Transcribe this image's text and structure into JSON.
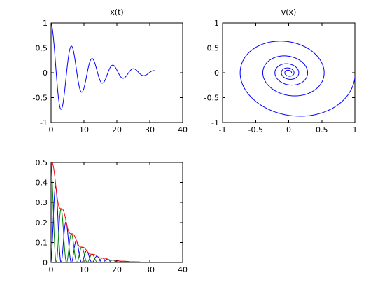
{
  "chart_data": [
    {
      "type": "line",
      "title": "x(t)",
      "xlabel": "",
      "ylabel": "",
      "xlim": [
        0,
        40
      ],
      "ylim": [
        -1,
        1
      ],
      "xticks": [
        0,
        10,
        20,
        30,
        40
      ],
      "yticks": [
        -1,
        -0.5,
        0,
        0.5,
        1
      ],
      "xtick_labels": [
        "0",
        "10",
        "20",
        "30",
        "40"
      ],
      "ytick_labels": [
        "-1",
        "-0.5",
        "0",
        "0.5",
        "1"
      ],
      "grid": false,
      "series": [
        {
          "color": "#0000ff",
          "model": "damped_cosine",
          "amplitude": 1,
          "omega": 1.0,
          "decay": 0.1,
          "t_range": [
            0,
            31.4
          ]
        }
      ]
    },
    {
      "type": "line",
      "title": "v(x)",
      "xlabel": "",
      "ylabel": "",
      "xlim": [
        -1,
        1
      ],
      "ylim": [
        -1,
        1
      ],
      "xticks": [
        -1,
        -0.5,
        0,
        0.5,
        1
      ],
      "yticks": [
        -1,
        -0.5,
        0,
        0.5,
        1
      ],
      "xtick_labels": [
        "-1",
        "-0.5",
        "0",
        "0.5",
        "1"
      ],
      "ytick_labels": [
        "-1",
        "-0.5",
        "0",
        "0.5",
        "1"
      ],
      "grid": false,
      "series": [
        {
          "color": "#0000ff",
          "model": "phase_spiral",
          "amplitude": 1,
          "omega": 1.0,
          "decay": 0.1,
          "t_range": [
            0,
            31.4
          ]
        }
      ]
    },
    {
      "type": "line",
      "title": "",
      "xlabel": "",
      "ylabel": "",
      "xlim": [
        0,
        40
      ],
      "ylim": [
        0,
        0.5
      ],
      "xticks": [
        0,
        10,
        20,
        30,
        40
      ],
      "yticks": [
        0,
        0.1,
        0.2,
        0.3,
        0.4,
        0.5
      ],
      "xtick_labels": [
        "0",
        "10",
        "20",
        "30",
        "40"
      ],
      "ytick_labels": [
        "0",
        "0.1",
        "0.2",
        "0.3",
        "0.4",
        "0.5"
      ],
      "grid": false,
      "series": [
        {
          "color": "#0000ff",
          "model": "kinetic_energy",
          "t_range": [
            0,
            31.4
          ]
        },
        {
          "color": "#008000",
          "model": "potential_energy",
          "t_range": [
            0,
            31.4
          ]
        },
        {
          "color": "#ff0000",
          "model": "total_energy",
          "t_range": [
            0,
            31.4
          ]
        }
      ]
    }
  ]
}
